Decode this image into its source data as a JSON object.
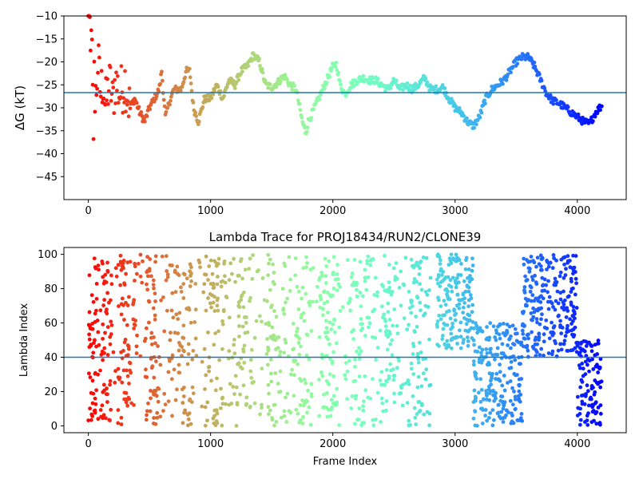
{
  "chart_data": [
    {
      "type": "scatter",
      "title": "",
      "xlabel": "",
      "ylabel": "ΔG (kT)",
      "xlim": [
        -200,
        4400
      ],
      "ylim": [
        -50,
        -10
      ],
      "xticks": [
        0,
        1000,
        2000,
        3000,
        4000
      ],
      "yticks": [
        -45,
        -40,
        -35,
        -30,
        -25,
        -20,
        -15,
        -10
      ],
      "hline": -26.7,
      "grid": false,
      "legend": "none",
      "colormap": "rainbow",
      "x_max": 4200,
      "trace": [
        [
          0,
          -10
        ],
        [
          20,
          -14
        ],
        [
          40,
          -22
        ],
        [
          60,
          -28
        ],
        [
          80,
          -20
        ],
        [
          100,
          -27
        ],
        [
          120,
          -24
        ],
        [
          140,
          -30
        ],
        [
          160,
          -26
        ],
        [
          180,
          -25
        ],
        [
          200,
          -29
        ],
        [
          220,
          -24
        ],
        [
          260,
          -27
        ],
        [
          300,
          -24
        ],
        [
          340,
          -30
        ],
        [
          380,
          -28
        ],
        [
          420,
          -31
        ],
        [
          460,
          -33
        ],
        [
          500,
          -30
        ],
        [
          540,
          -28
        ],
        [
          580,
          -26
        ],
        [
          600,
          -22
        ],
        [
          630,
          -32
        ],
        [
          660,
          -29
        ],
        [
          700,
          -26
        ],
        [
          760,
          -26
        ],
        [
          800,
          -22
        ],
        [
          830,
          -22
        ],
        [
          860,
          -30
        ],
        [
          900,
          -33
        ],
        [
          950,
          -28
        ],
        [
          1000,
          -28
        ],
        [
          1050,
          -25
        ],
        [
          1100,
          -28
        ],
        [
          1150,
          -24
        ],
        [
          1200,
          -25
        ],
        [
          1250,
          -22
        ],
        [
          1300,
          -21
        ],
        [
          1350,
          -18.5
        ],
        [
          1400,
          -20
        ],
        [
          1450,
          -25
        ],
        [
          1500,
          -25.5
        ],
        [
          1550,
          -24.5
        ],
        [
          1600,
          -23
        ],
        [
          1650,
          -25
        ],
        [
          1700,
          -26
        ],
        [
          1750,
          -33
        ],
        [
          1780,
          -35.5
        ],
        [
          1800,
          -33
        ],
        [
          1850,
          -30
        ],
        [
          1900,
          -27
        ],
        [
          1950,
          -24
        ],
        [
          2000,
          -21
        ],
        [
          2030,
          -20.5
        ],
        [
          2060,
          -25
        ],
        [
          2100,
          -27
        ],
        [
          2150,
          -25
        ],
        [
          2200,
          -24
        ],
        [
          2250,
          -23.5
        ],
        [
          2300,
          -24
        ],
        [
          2350,
          -24
        ],
        [
          2400,
          -25
        ],
        [
          2450,
          -26
        ],
        [
          2500,
          -24
        ],
        [
          2550,
          -26
        ],
        [
          2600,
          -25
        ],
        [
          2650,
          -26
        ],
        [
          2700,
          -25
        ],
        [
          2750,
          -23.5
        ],
        [
          2800,
          -26
        ],
        [
          2850,
          -26
        ],
        [
          2900,
          -25.5
        ],
        [
          2950,
          -28
        ],
        [
          3000,
          -30
        ],
        [
          3050,
          -31
        ],
        [
          3100,
          -33
        ],
        [
          3150,
          -34
        ],
        [
          3200,
          -32
        ],
        [
          3250,
          -28
        ],
        [
          3300,
          -26
        ],
        [
          3350,
          -25
        ],
        [
          3400,
          -24
        ],
        [
          3450,
          -22
        ],
        [
          3500,
          -20
        ],
        [
          3550,
          -19
        ],
        [
          3600,
          -19
        ],
        [
          3650,
          -21
        ],
        [
          3700,
          -24
        ],
        [
          3750,
          -27
        ],
        [
          3800,
          -28.5
        ],
        [
          3850,
          -29
        ],
        [
          3900,
          -30
        ],
        [
          3950,
          -31
        ],
        [
          4000,
          -32
        ],
        [
          4050,
          -33
        ],
        [
          4100,
          -33.5
        ],
        [
          4150,
          -31
        ],
        [
          4200,
          -29.5
        ]
      ]
    },
    {
      "type": "scatter",
      "title": "Lambda Trace for PROJ18434/RUN2/CLONE39",
      "xlabel": "Frame Index",
      "ylabel": "Lambda Index",
      "xlim": [
        -200,
        4400
      ],
      "ylim": [
        -4,
        104
      ],
      "xticks": [
        0,
        1000,
        2000,
        3000,
        4000
      ],
      "yticks": [
        0,
        20,
        40,
        60,
        80,
        100
      ],
      "hline": 40,
      "grid": false,
      "legend": "none",
      "colormap": "rainbow",
      "x_max": 4200,
      "segments": [
        {
          "x": [
            0,
            200
          ],
          "range": [
            2,
            98
          ]
        },
        {
          "x": [
            200,
            2800
          ],
          "range": [
            0,
            100
          ]
        },
        {
          "x": [
            2850,
            3150
          ],
          "range": [
            45,
            100
          ]
        },
        {
          "x": [
            3150,
            3550
          ],
          "range": [
            0,
            60
          ]
        },
        {
          "x": [
            3550,
            4000
          ],
          "range": [
            40,
            100
          ]
        },
        {
          "x": [
            4000,
            4200
          ],
          "range": [
            0,
            50
          ]
        }
      ]
    }
  ]
}
